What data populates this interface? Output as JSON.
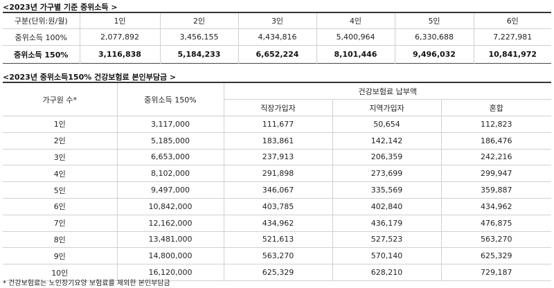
{
  "table1": {
    "title": "<2023년 가구별 기준 중위소득 >",
    "header": [
      "구분(단위:원/월)",
      "1인",
      "2인",
      "3인",
      "4인",
      "5인",
      "6인"
    ],
    "rows": [
      [
        "중위소득 100%",
        "2,077,892",
        "3,456,155",
        "4,434,816",
        "5,400,964",
        "6,330,688",
        "7,227,981"
      ],
      [
        "중위소득 150%",
        "3,116,838",
        "5,184,233",
        "6,652,224",
        "8,101,446",
        "9,496,032",
        "10,841,972"
      ]
    ]
  },
  "table2": {
    "title": "<2023년 중위소득150% 건강보험료 본인부담금 >",
    "col_household": "가구원 수*",
    "col_median": "중위소득 150%",
    "col_premium_group": "건강보험료 납부액",
    "col_employee": "직장가입자",
    "col_regional": "지역가입자",
    "col_mixed": "혼합",
    "rows": [
      [
        "1인",
        "3,117,000",
        "111,677",
        "50,654",
        "112,823"
      ],
      [
        "2인",
        "5,185,000",
        "183,861",
        "142,142",
        "186,476"
      ],
      [
        "3인",
        "6,653,000",
        "237,913",
        "206,359",
        "242,216"
      ],
      [
        "4인",
        "8,102,000",
        "291,898",
        "273,699",
        "299,947"
      ],
      [
        "5인",
        "9,497,000",
        "346,067",
        "335,569",
        "359,887"
      ],
      [
        "6인",
        "10,842,000",
        "403,785",
        "402,840",
        "434,962"
      ],
      [
        "7인",
        "12,162,000",
        "434,962",
        "436,179",
        "476,875"
      ],
      [
        "8인",
        "13,481,000",
        "521,613",
        "527,523",
        "563,270"
      ],
      [
        "9인",
        "14,800,000",
        "563,270",
        "570,140",
        "625,329"
      ],
      [
        "10인",
        "16,120,000",
        "625,329",
        "628,210",
        "729,187"
      ]
    ]
  },
  "footnote": "* 건강보험료는 노인장기요양 보험료를 제외한 본인부담금"
}
